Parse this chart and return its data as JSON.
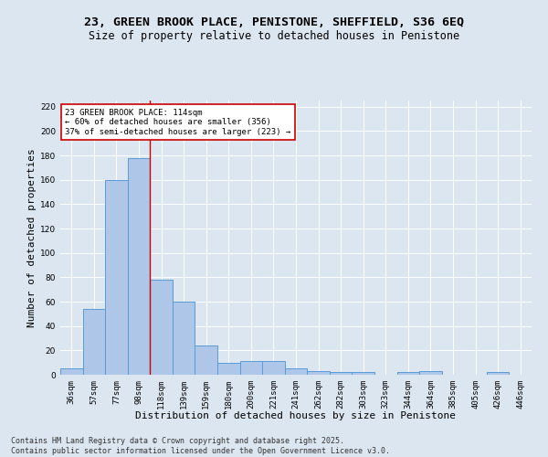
{
  "title_line1": "23, GREEN BROOK PLACE, PENISTONE, SHEFFIELD, S36 6EQ",
  "title_line2": "Size of property relative to detached houses in Penistone",
  "xlabel": "Distribution of detached houses by size in Penistone",
  "ylabel": "Number of detached properties",
  "categories": [
    "36sqm",
    "57sqm",
    "77sqm",
    "98sqm",
    "118sqm",
    "139sqm",
    "159sqm",
    "180sqm",
    "200sqm",
    "221sqm",
    "241sqm",
    "262sqm",
    "282sqm",
    "303sqm",
    "323sqm",
    "344sqm",
    "364sqm",
    "385sqm",
    "405sqm",
    "426sqm",
    "446sqm"
  ],
  "values": [
    5,
    54,
    160,
    178,
    78,
    60,
    24,
    10,
    11,
    11,
    5,
    3,
    2,
    2,
    0,
    2,
    3,
    0,
    0,
    2,
    0
  ],
  "bar_color": "#aec6e8",
  "bar_edge_color": "#5b9bd5",
  "background_color": "#dce6f1",
  "vline_x": 3.5,
  "vline_color": "#cc0000",
  "annotation_text": "23 GREEN BROOK PLACE: 114sqm\n← 60% of detached houses are smaller (356)\n37% of semi-detached houses are larger (223) →",
  "annotation_box_color": "#ffffff",
  "annotation_box_edge_color": "#cc0000",
  "annotation_fontsize": 6.5,
  "footer_text": "Contains HM Land Registry data © Crown copyright and database right 2025.\nContains public sector information licensed under the Open Government Licence v3.0.",
  "ylim": [
    0,
    225
  ],
  "yticks": [
    0,
    20,
    40,
    60,
    80,
    100,
    120,
    140,
    160,
    180,
    200,
    220
  ],
  "title_fontsize": 9.5,
  "subtitle_fontsize": 8.5,
  "xlabel_fontsize": 8,
  "ylabel_fontsize": 8,
  "tick_fontsize": 6.5,
  "footer_fontsize": 6
}
